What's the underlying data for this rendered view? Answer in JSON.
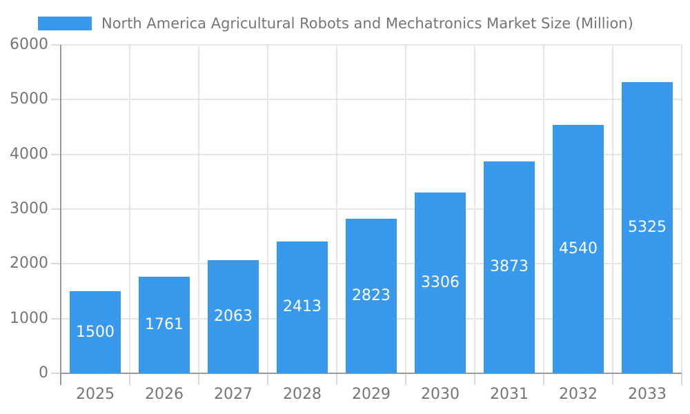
{
  "chart_data": {
    "type": "bar",
    "title": "North America Agricultural Robots and Mechatronics Market Size (Million)",
    "legend": {
      "position": "top-left",
      "label": "North America Agricultural Robots and Mechatronics Market Size (Million)"
    },
    "categories": [
      "2025",
      "2026",
      "2027",
      "2028",
      "2029",
      "2030",
      "2031",
      "2032",
      "2033"
    ],
    "values": [
      1500,
      1761,
      2063,
      2413,
      2823,
      3306,
      3873,
      4540,
      5325
    ],
    "xlabel": "",
    "ylabel": "",
    "ylim": [
      0,
      6000
    ],
    "y_ticks": [
      0,
      1000,
      2000,
      3000,
      4000,
      5000,
      6000
    ],
    "grid": true,
    "colors": {
      "bar": "#3899ec",
      "gridline": "#e5e5e5",
      "axis": "#999999",
      "tick": "#d9d9d9",
      "text": "#757575",
      "value_label": "#ffffff",
      "background": "#ffffff"
    }
  }
}
